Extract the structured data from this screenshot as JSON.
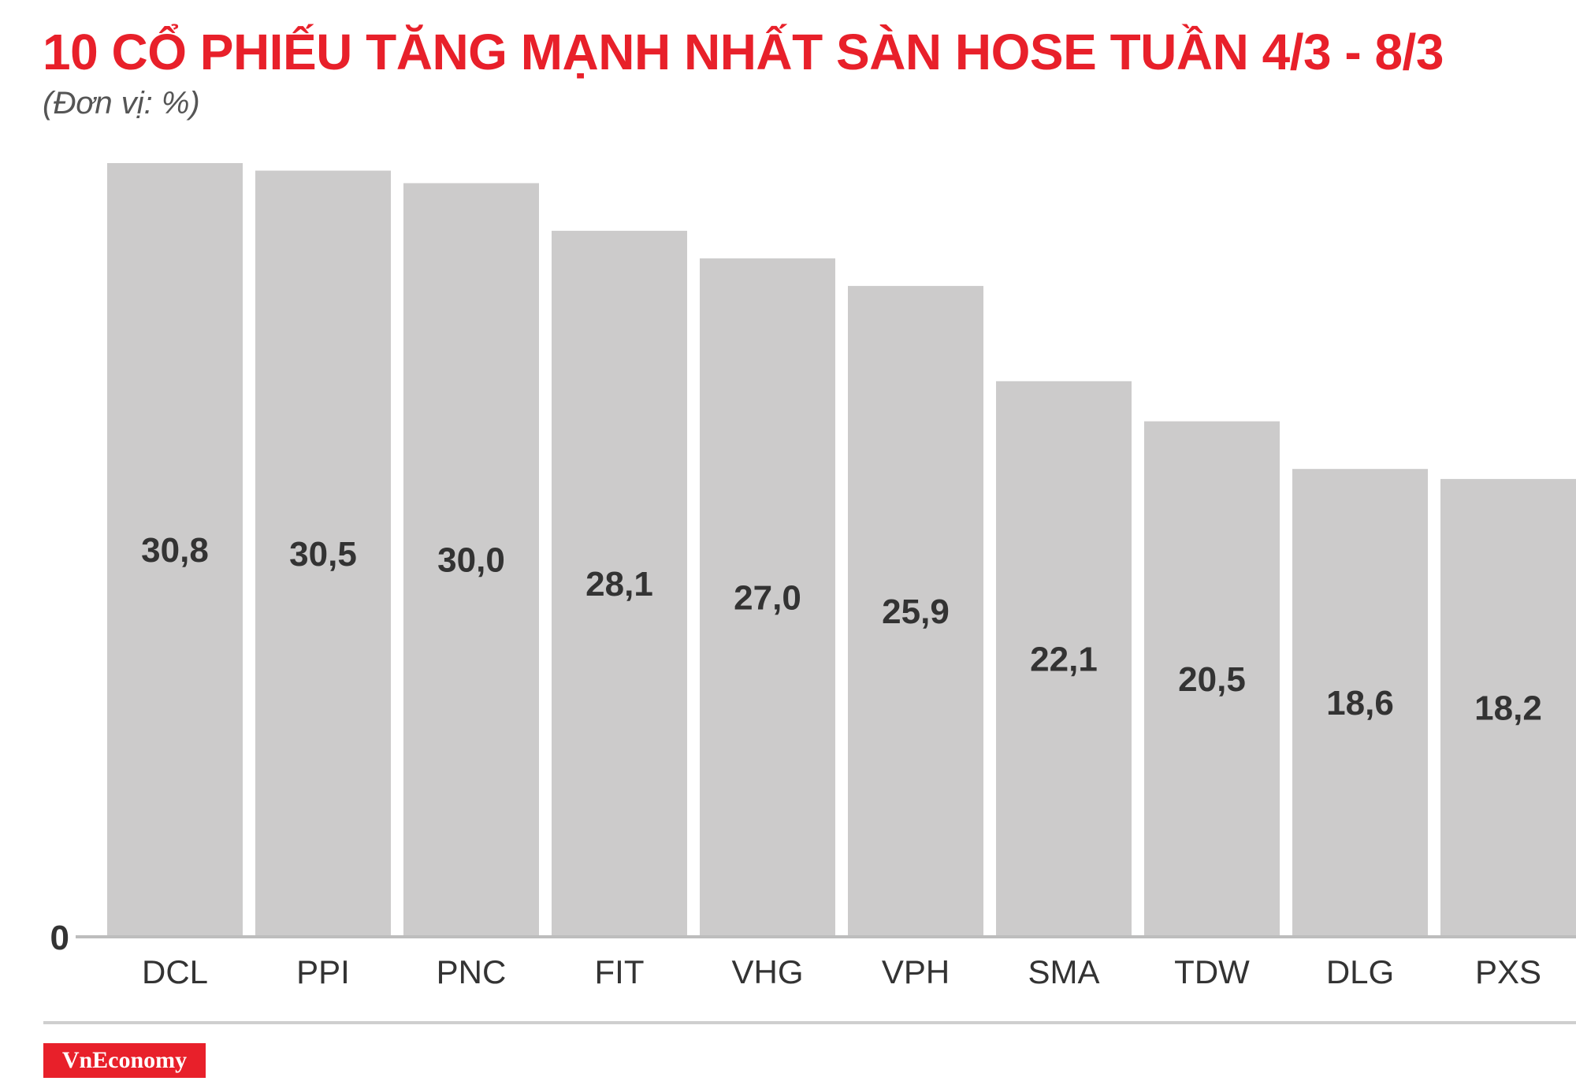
{
  "chart_data": {
    "type": "bar",
    "title": "10 CỔ PHIẾU TĂNG MẠNH NHẤT SÀN HOSE TUẦN 4/3 - 8/3",
    "subtitle": "(Đơn vị: %)",
    "categories": [
      "DCL",
      "PPI",
      "PNC",
      "FIT",
      "VHG",
      "VPH",
      "SMA",
      "TDW",
      "DLG",
      "PXS"
    ],
    "values": [
      30.8,
      30.5,
      30.0,
      28.1,
      27.0,
      25.9,
      22.1,
      20.5,
      18.6,
      18.2
    ],
    "value_labels": [
      "30,8",
      "30,5",
      "30,0",
      "28,1",
      "27,0",
      "25,9",
      "22,1",
      "20,5",
      "18,6",
      "18,2"
    ],
    "ylim": [
      0,
      30.8
    ],
    "y_tick_labels": [
      "0"
    ],
    "grid": false,
    "legend": "none",
    "colors": {
      "bar": "#cccbcb",
      "title": "#e8202a",
      "text": "#333333",
      "axis": "#bdbdbd"
    }
  },
  "brand": {
    "logo_text": "VnEconomy",
    "color": "#e8202a"
  }
}
